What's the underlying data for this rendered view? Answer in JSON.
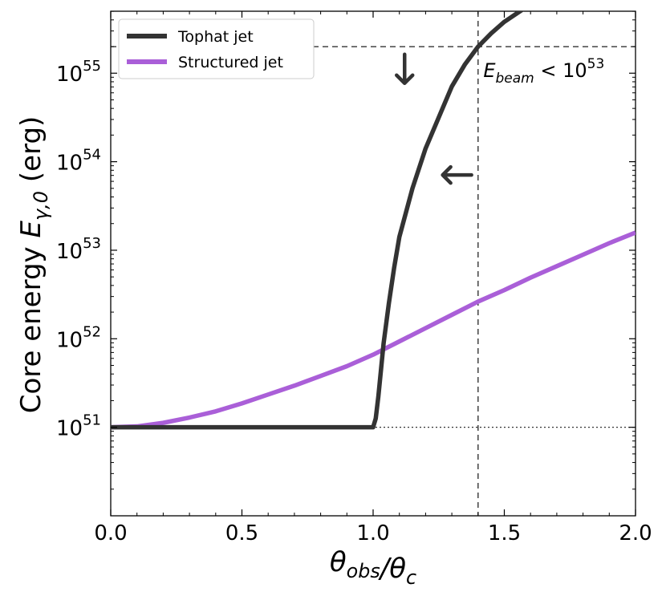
{
  "chart_data": {
    "type": "line",
    "xlabel": "θ_obs/θ_c",
    "ylabel": "Core energy E_γ,0 (erg)",
    "xlim": [
      0.0,
      2.0
    ],
    "ylim_log10": [
      50,
      55.7
    ],
    "y_scale": "log",
    "grid": false,
    "x_ticks": [
      "0.0",
      "0.5",
      "1.0",
      "1.5",
      "2.0"
    ],
    "y_ticks": [
      {
        "exp": 51,
        "base": "10",
        "sup": "51"
      },
      {
        "exp": 52,
        "base": "10",
        "sup": "52"
      },
      {
        "exp": 53,
        "base": "10",
        "sup": "53"
      },
      {
        "exp": 54,
        "base": "10",
        "sup": "54"
      },
      {
        "exp": 55,
        "base": "10",
        "sup": "55"
      }
    ],
    "legend": {
      "placement": "top-left",
      "entries": [
        {
          "label": "Tophat jet",
          "color": "#333333"
        },
        {
          "label": "Structured jet",
          "color": "#aa5fd8"
        }
      ]
    },
    "series": [
      {
        "name": "Tophat jet",
        "color": "#333333",
        "x": [
          0.0,
          0.2,
          0.4,
          0.6,
          0.8,
          1.0,
          1.01,
          1.02,
          1.03,
          1.04,
          1.06,
          1.08,
          1.1,
          1.15,
          1.2,
          1.25,
          1.3,
          1.35,
          1.4,
          1.45,
          1.5,
          1.55,
          1.6
        ],
        "log10_y": [
          51.0,
          51.0,
          51.0,
          51.0,
          51.0,
          51.0,
          51.1,
          51.35,
          51.65,
          51.95,
          52.4,
          52.8,
          53.15,
          53.7,
          54.15,
          54.5,
          54.85,
          55.1,
          55.3,
          55.45,
          55.58,
          55.68,
          55.78
        ]
      },
      {
        "name": "Structured jet",
        "color": "#aa5fd8",
        "x": [
          0.0,
          0.1,
          0.2,
          0.3,
          0.4,
          0.5,
          0.6,
          0.7,
          0.8,
          0.9,
          1.0,
          1.1,
          1.2,
          1.3,
          1.4,
          1.5,
          1.6,
          1.7,
          1.8,
          1.9,
          2.0
        ],
        "log10_y": [
          51.0,
          51.01,
          51.05,
          51.11,
          51.18,
          51.27,
          51.37,
          51.47,
          51.58,
          51.69,
          51.82,
          51.97,
          52.12,
          52.27,
          52.42,
          52.55,
          52.69,
          52.82,
          52.95,
          53.08,
          53.2
        ]
      }
    ],
    "reference_lines": [
      {
        "kind": "vertical",
        "x": 1.4,
        "style": "dashed"
      },
      {
        "kind": "horizontal",
        "log10_y": 55.3,
        "style": "dashed"
      },
      {
        "kind": "horizontal",
        "log10_y": 51.0,
        "style": "dotted"
      }
    ],
    "annotations": {
      "beam_label": {
        "E": "E",
        "sub": "beam",
        "rest": " < 10",
        "sup": "53"
      },
      "arrows": [
        {
          "direction": "down",
          "x": 1.12,
          "log10_y": 55.05
        },
        {
          "direction": "left",
          "x": 1.32,
          "log10_y": 53.85
        }
      ]
    }
  }
}
